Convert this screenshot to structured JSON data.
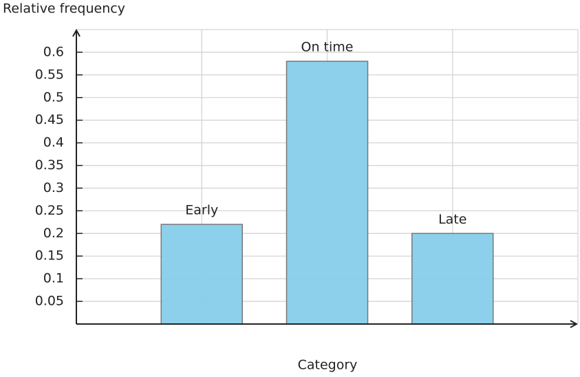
{
  "chart_data": {
    "type": "bar",
    "x_label": "Category",
    "y_label": "Relative frequency",
    "categories": [
      "Early",
      "On time",
      "Late"
    ],
    "values": [
      0.22,
      0.58,
      0.2
    ],
    "color": "#87ceeb",
    "ylim": [
      0,
      0.65
    ],
    "yticks": [
      0.05,
      0.1,
      0.15,
      0.2,
      0.25,
      0.3,
      0.35,
      0.4,
      0.45,
      0.5,
      0.55,
      0.6
    ],
    "grid": true
  }
}
